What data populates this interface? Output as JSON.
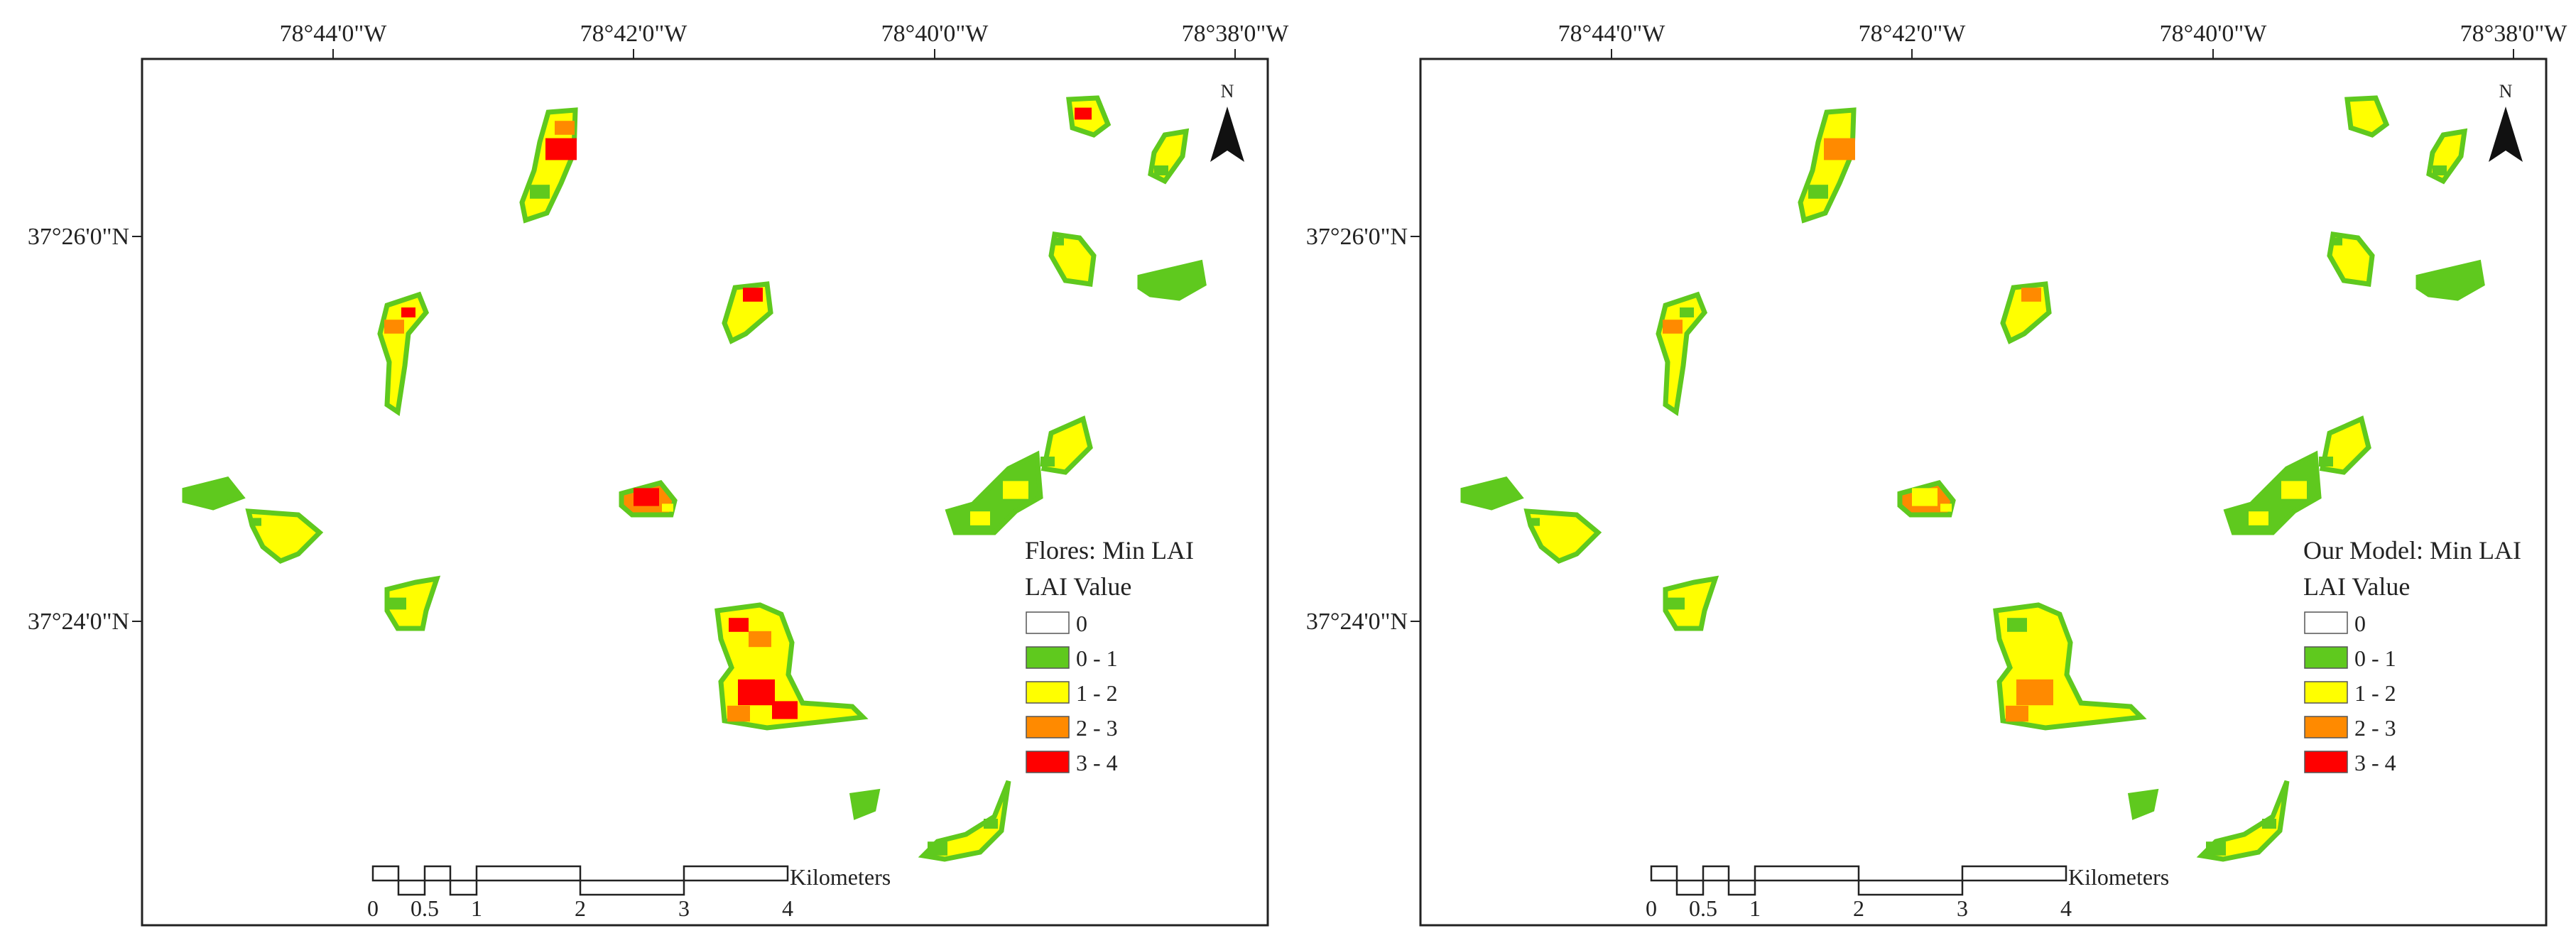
{
  "panels": [
    {
      "id": "flores",
      "map_title": "Flores: Min LAI",
      "variant": 0
    },
    {
      "id": "our-model",
      "map_title": "Our Model: Min LAI",
      "variant": 1
    }
  ],
  "longitude_labels": [
    "78°44'0\"W",
    "78°42'0\"W",
    "78°40'0\"W",
    "78°38'0\"W"
  ],
  "latitude_labels": [
    "37°26'0\"N",
    "37°24'0\"N"
  ],
  "north_arrow": {
    "label": "N",
    "icon": "north-arrow-icon"
  },
  "legend": {
    "title": "LAI Value",
    "classes": [
      {
        "label": "0",
        "color": "#ffffff"
      },
      {
        "label": "0 - 1",
        "color": "#5fc91e"
      },
      {
        "label": "1 - 2",
        "color": "#ffff00"
      },
      {
        "label": "2 - 3",
        "color": "#ff8a00"
      },
      {
        "label": "3 - 4",
        "color": "#ff0000"
      }
    ]
  },
  "scale_bar": {
    "tick_labels": [
      "0",
      "0.5",
      "1",
      "2",
      "3",
      "4"
    ],
    "unit": "Kilometers"
  }
}
